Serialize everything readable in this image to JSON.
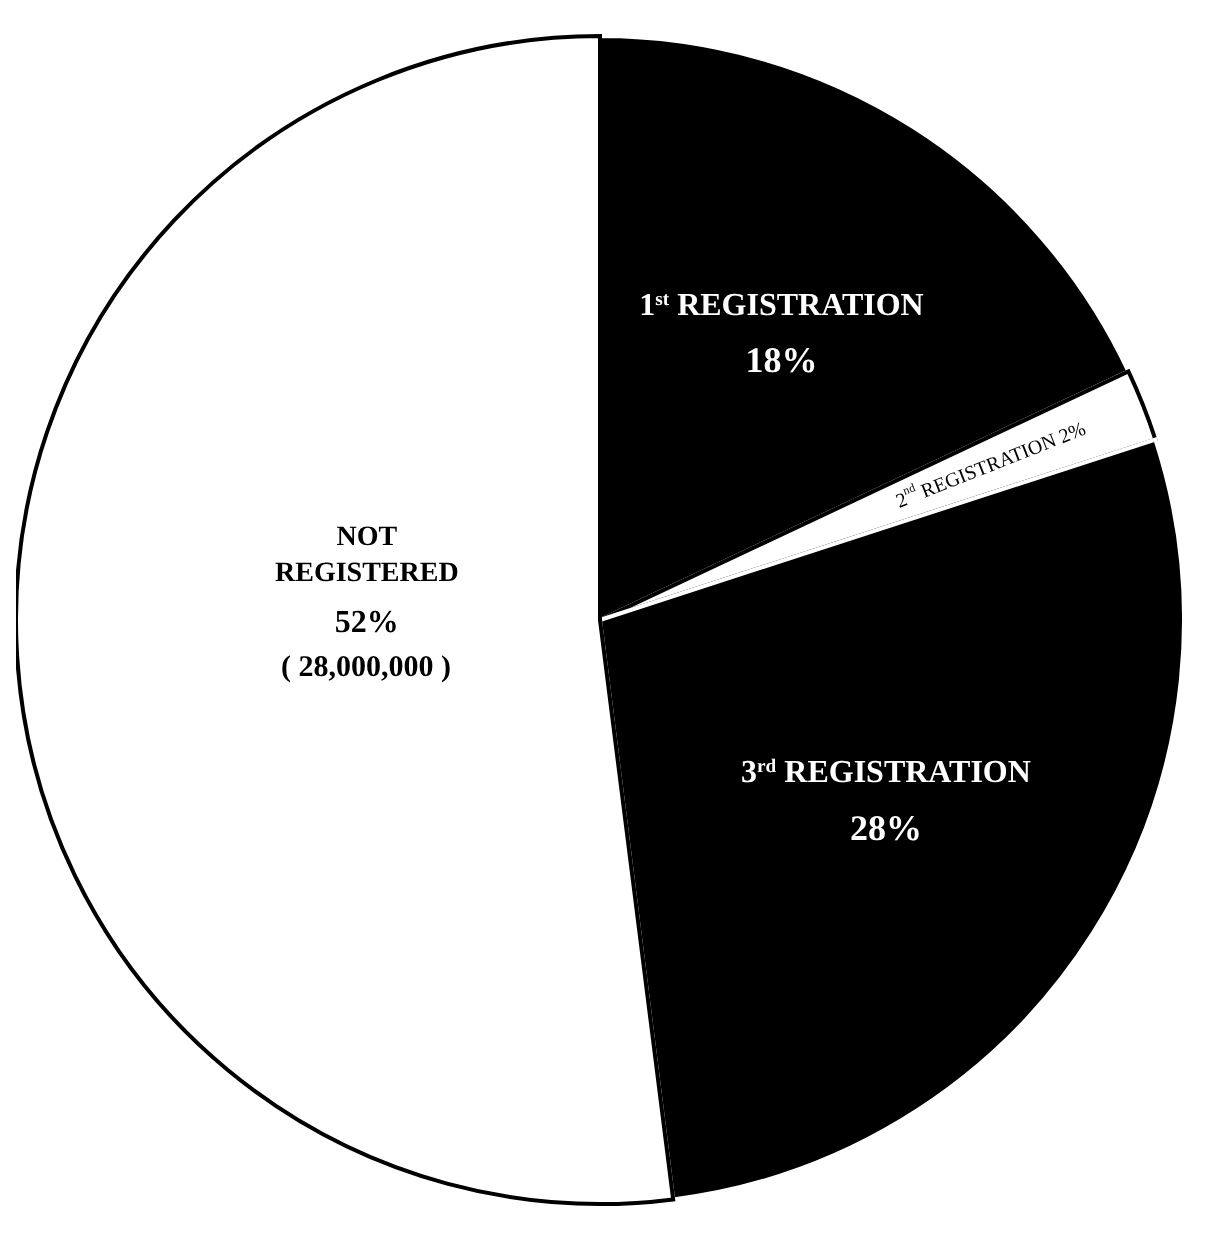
{
  "chart_data": {
    "type": "pie",
    "categories": [
      "1$^{st}$ REGISTRATION",
      "2$^{nd}$ REGISTRATION",
      "3$^{rd}$ REGISTRATION",
      "NOT REGISTERED"
    ],
    "values": [
      18,
      2,
      28,
      52
    ],
    "colors": [
      "#000000",
      "#ffffff",
      "#000000",
      "#ffffff"
    ],
    "value_labels": [
      "18%",
      "2%",
      "28%",
      "52%"
    ],
    "annotations": [
      "( 28,000,000 )"
    ]
  }
}
